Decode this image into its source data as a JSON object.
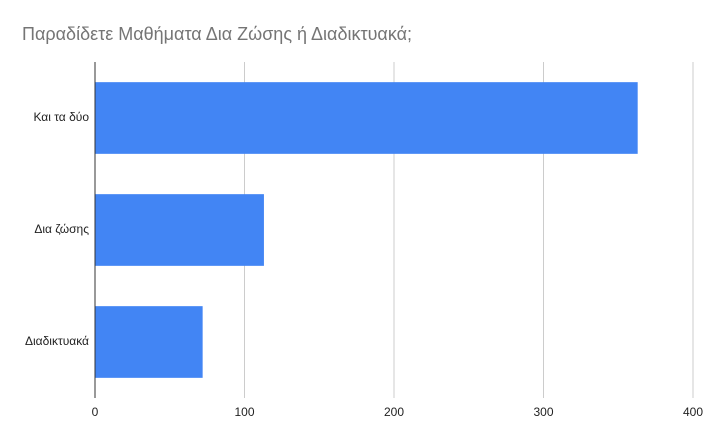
{
  "chart_data": {
    "type": "bar",
    "orientation": "horizontal",
    "title": "Παραδίδετε Μαθήματα Δια Ζώσης ή Διαδικτυακά;",
    "categories": [
      "Και τα δύο",
      "Δια ζώσης",
      "Διαδικτυακά"
    ],
    "values": [
      363,
      113,
      72
    ],
    "color": "#4285f4",
    "xlim": [
      0,
      400
    ],
    "xticks": [
      0,
      100,
      200,
      300,
      400
    ],
    "grid": true
  }
}
